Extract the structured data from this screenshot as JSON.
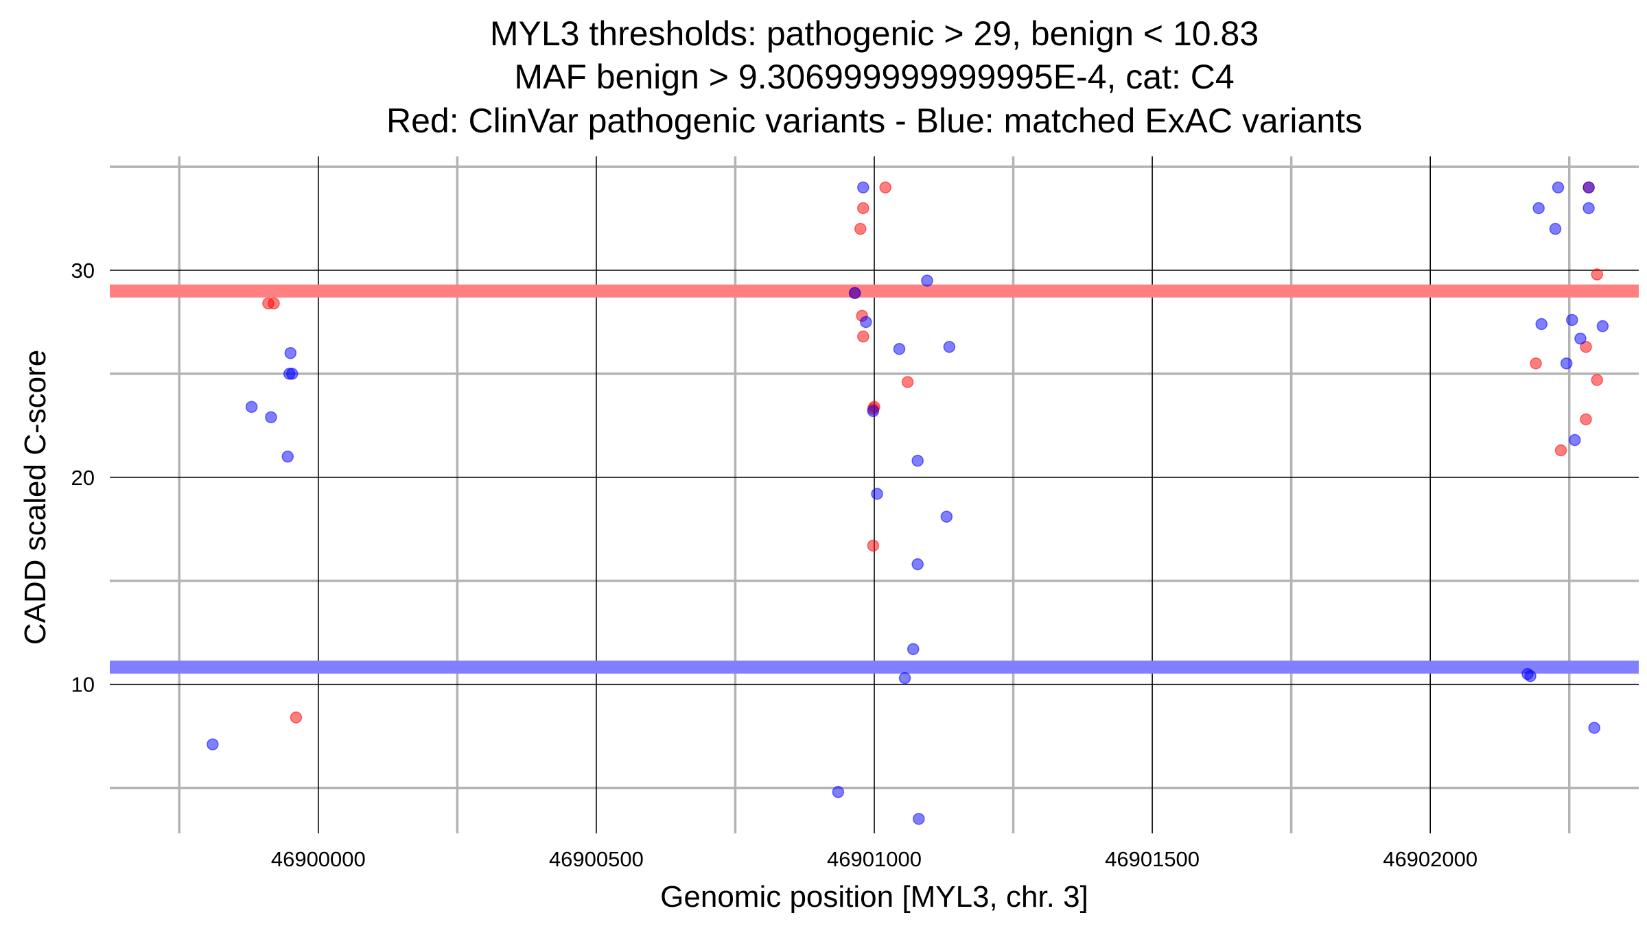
{
  "chart_data": {
    "type": "scatter",
    "title": [
      "MYL3 thresholds: pathogenic > 29, benign < 10.83",
      "MAF benign > 9.306999999999995E-4, cat: C4",
      "Red: ClinVar pathogenic variants - Blue: matched ExAC variants"
    ],
    "xlabel": "Genomic position [MYL3, chr. 3]",
    "ylabel": "CADD scaled C-score",
    "xlim": [
      46899625,
      46902375
    ],
    "ylim": [
      2.8,
      35.5
    ],
    "x_ticks": [
      46900000,
      46900500,
      46901000,
      46901500,
      46902000
    ],
    "x_tick_labels": [
      "46900000",
      "46900500",
      "46901000",
      "46901500",
      "46902000"
    ],
    "x_minor_ticks": [
      46899750,
      46900250,
      46900750,
      46901250,
      46901750,
      46902250
    ],
    "y_ticks": [
      10,
      20,
      30
    ],
    "y_tick_labels": [
      "10",
      "20",
      "30"
    ],
    "y_minor_ticks": [
      5,
      15,
      25,
      35
    ],
    "grid": true,
    "thresholds": [
      {
        "label": "pathogenic",
        "y": 29,
        "color": "#ff8080"
      },
      {
        "label": "benign",
        "y": 10.83,
        "color": "#8080ff"
      }
    ],
    "series": [
      {
        "color": "#ff0000",
        "points": [
          {
            "x": 46899910,
            "y": 28.4
          },
          {
            "x": 46899920,
            "y": 28.4
          },
          {
            "x": 46899960,
            "y": 8.4
          },
          {
            "x": 46900980,
            "y": 33
          },
          {
            "x": 46900975,
            "y": 32
          },
          {
            "x": 46901020,
            "y": 34
          },
          {
            "x": 46900965,
            "y": 28.9
          },
          {
            "x": 46900978,
            "y": 27.8
          },
          {
            "x": 46900980,
            "y": 26.8
          },
          {
            "x": 46901060,
            "y": 24.6
          },
          {
            "x": 46900998,
            "y": 23.3
          },
          {
            "x": 46901000,
            "y": 23.4
          },
          {
            "x": 46900998,
            "y": 16.7
          },
          {
            "x": 46902285,
            "y": 34
          },
          {
            "x": 46902300,
            "y": 29.8
          },
          {
            "x": 46902190,
            "y": 25.5
          },
          {
            "x": 46902280,
            "y": 26.3
          },
          {
            "x": 46902300,
            "y": 24.7
          },
          {
            "x": 46902280,
            "y": 22.8
          },
          {
            "x": 46902235,
            "y": 21.3
          }
        ]
      },
      {
        "color": "#0000ff",
        "points": [
          {
            "x": 46899810,
            "y": 7.1
          },
          {
            "x": 46899880,
            "y": 23.4
          },
          {
            "x": 46899915,
            "y": 22.9
          },
          {
            "x": 46899945,
            "y": 21.0
          },
          {
            "x": 46899950,
            "y": 26.0
          },
          {
            "x": 46899948,
            "y": 25.0
          },
          {
            "x": 46899953,
            "y": 25.0
          },
          {
            "x": 46900980,
            "y": 34
          },
          {
            "x": 46901095,
            "y": 29.5
          },
          {
            "x": 46900965,
            "y": 28.9
          },
          {
            "x": 46900985,
            "y": 27.5
          },
          {
            "x": 46901045,
            "y": 26.2
          },
          {
            "x": 46901135,
            "y": 26.3
          },
          {
            "x": 46900998,
            "y": 23.2
          },
          {
            "x": 46901078,
            "y": 20.8
          },
          {
            "x": 46901005,
            "y": 19.2
          },
          {
            "x": 46901130,
            "y": 18.1
          },
          {
            "x": 46901078,
            "y": 15.8
          },
          {
            "x": 46901070,
            "y": 11.7
          },
          {
            "x": 46901055,
            "y": 10.3
          },
          {
            "x": 46900935,
            "y": 4.8
          },
          {
            "x": 46901080,
            "y": 3.5
          },
          {
            "x": 46902230,
            "y": 34
          },
          {
            "x": 46902285,
            "y": 34
          },
          {
            "x": 46902195,
            "y": 33
          },
          {
            "x": 46902285,
            "y": 33
          },
          {
            "x": 46902225,
            "y": 32
          },
          {
            "x": 46902200,
            "y": 27.4
          },
          {
            "x": 46902255,
            "y": 27.6
          },
          {
            "x": 46902310,
            "y": 27.3
          },
          {
            "x": 46902270,
            "y": 26.7
          },
          {
            "x": 46902245,
            "y": 25.5
          },
          {
            "x": 46902260,
            "y": 21.8
          },
          {
            "x": 46902175,
            "y": 10.5
          },
          {
            "x": 46902180,
            "y": 10.4
          },
          {
            "x": 46902295,
            "y": 7.9
          }
        ]
      }
    ]
  }
}
